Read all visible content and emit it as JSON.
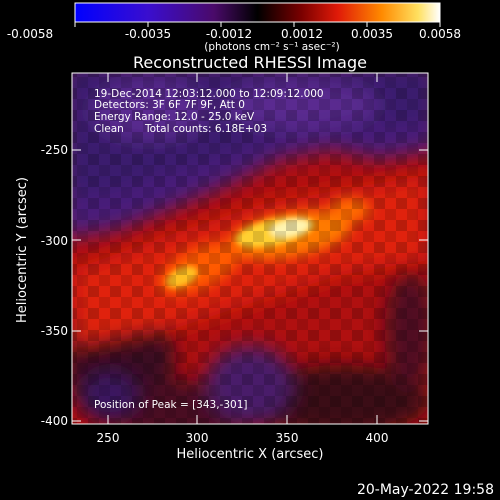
{
  "colorbar": {
    "tick_labels": [
      "-0.0058",
      "-0.0035",
      "-0.0012",
      "0.0012",
      "0.0035",
      "0.0058"
    ],
    "units_label": "(photons cm⁻² s⁻¹ asec⁻²)",
    "colors": {
      "neg_end": "#0000ff",
      "neg_mid": "#5a1a8a",
      "zero": "#000000",
      "pos_low": "#d01010",
      "pos_mid": "#ff8a00",
      "pos_high": "#ffffff"
    }
  },
  "plot": {
    "title": "Reconstructed RHESSI Image",
    "xlabel": "Heliocentric X (arcsec)",
    "ylabel": "Heliocentric Y (arcsec)",
    "x_ticks": [
      "250",
      "300",
      "350",
      "400"
    ],
    "y_ticks": [
      "-250",
      "-300",
      "-350",
      "-400"
    ]
  },
  "annotations": {
    "time_range": "19-Dec-2014 12:03:12.000 to 12:09:12.000",
    "detectors": "Detectors: 3F 6F 7F 9F, Att 0",
    "energy_range": "Energy Range: 12.0 - 25.0 keV",
    "clean_label": "Clean",
    "total_counts": "Total counts: 6.18E+03",
    "peak_position": "Position of Peak = [343,-301]"
  },
  "footer": {
    "date_time": "20-May-2022 19:58"
  }
}
